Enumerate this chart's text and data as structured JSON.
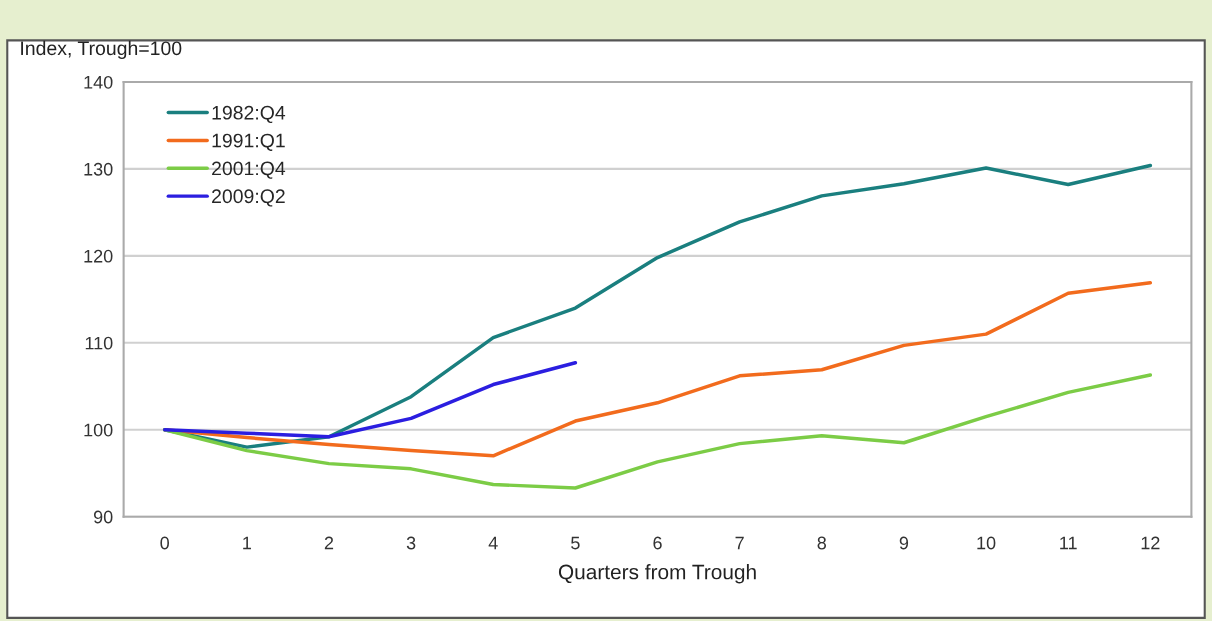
{
  "chart_data": {
    "type": "line",
    "ylabel": "Index, Trough=100",
    "xlabel": "Quarters from Trough",
    "x": [
      0,
      1,
      2,
      3,
      4,
      5,
      6,
      7,
      8,
      9,
      10,
      11,
      12
    ],
    "series": [
      {
        "name": "1982:Q4",
        "color": "#1a7f7f",
        "values": [
          100,
          98.0,
          99.2,
          103.8,
          110.6,
          114.0,
          119.8,
          123.9,
          126.9,
          128.3,
          130.1,
          128.2,
          130.4
        ]
      },
      {
        "name": "1991:Q1",
        "color": "#f26b1d",
        "values": [
          100,
          99.1,
          98.3,
          97.6,
          97.0,
          101.0,
          103.1,
          106.2,
          106.9,
          109.7,
          111.0,
          115.7,
          116.9
        ]
      },
      {
        "name": "2001:Q4",
        "color": "#7ccc46",
        "values": [
          100,
          97.6,
          96.1,
          95.5,
          93.7,
          93.3,
          96.3,
          98.4,
          99.3,
          98.5,
          101.5,
          104.3,
          106.3
        ]
      },
      {
        "name": "2009:Q2",
        "color": "#2b1ee0",
        "values": [
          100,
          99.6,
          99.2,
          101.3,
          105.2,
          107.7,
          null,
          null,
          null,
          null,
          null,
          null,
          null
        ]
      }
    ],
    "xlim": [
      -0.5,
      12.5
    ],
    "xticks": [
      0,
      1,
      2,
      3,
      4,
      5,
      6,
      7,
      8,
      9,
      10,
      11,
      12
    ],
    "ylim": [
      90,
      140
    ],
    "yticks": [
      90,
      100,
      110,
      120,
      130,
      140
    ],
    "grid": "y",
    "legend": "top left",
    "marker": "none",
    "line_style": "solid"
  }
}
